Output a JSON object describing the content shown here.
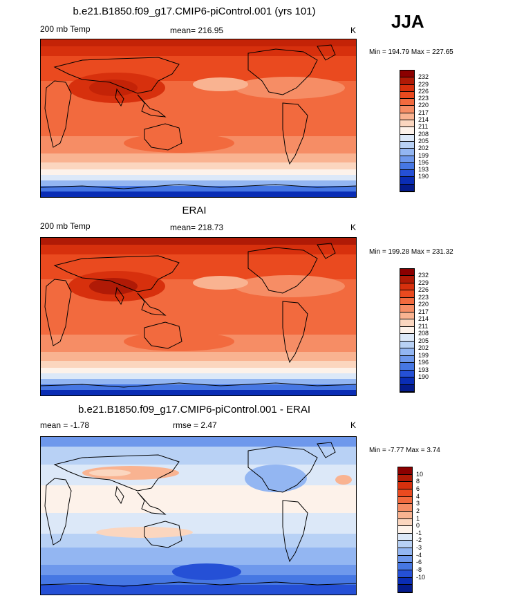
{
  "season": "JJA",
  "panels": [
    {
      "title": "b.e21.B1850.f09_g17.CMIP6-piControl.001 (yrs 101)",
      "left_label": "200 mb Temp",
      "center_label": "mean= 216.95",
      "units": "K",
      "minmax": "Min = 194.79 Max = 227.65"
    },
    {
      "title": "ERAI",
      "left_label": "200 mb Temp",
      "center_label": "mean= 218.73",
      "units": "K",
      "minmax": "Min = 199.28 Max = 231.32"
    },
    {
      "title": "b.e21.B1850.f09_g17.CMIP6-piControl.001 - ERAI",
      "left_label": "mean =  -1.78",
      "center_label": "rmse =   2.47",
      "units": "K",
      "minmax": "Min =  -7.77 Max =   3.74"
    }
  ],
  "colorbars": {
    "abs": {
      "labels": [
        "232",
        "229",
        "226",
        "223",
        "220",
        "217",
        "214",
        "211",
        "208",
        "205",
        "202",
        "199",
        "196",
        "193",
        "190"
      ],
      "colors": [
        "#8b0000",
        "#b01a06",
        "#d7300d",
        "#ea4a1f",
        "#f26a3e",
        "#f68d65",
        "#f9b391",
        "#fbd6bf",
        "#fdf2ea",
        "#dce8f8",
        "#b8d1f5",
        "#93b6f2",
        "#6e98ec",
        "#4677e3",
        "#2550d6",
        "#0a2db5",
        "#041b8c"
      ]
    },
    "diff": {
      "labels": [
        "10",
        "8",
        "6",
        "4",
        "3",
        "2",
        "1",
        "0",
        "-1",
        "-2",
        "-3",
        "-4",
        "-6",
        "-8",
        "-10"
      ],
      "colors": [
        "#8b0000",
        "#b01a06",
        "#d7300d",
        "#ea4a1f",
        "#f26a3e",
        "#f68d65",
        "#f9b391",
        "#fbd6bf",
        "#fdf2ea",
        "#dce8f8",
        "#b8d1f5",
        "#93b6f2",
        "#6e98ec",
        "#4677e3",
        "#2550d6",
        "#0a2db5",
        "#041b8c"
      ]
    }
  },
  "map_colors": {
    "p1": [
      "#c42307",
      "#d7300d",
      "#ea4a1f",
      "#f26a3e",
      "#f68d65",
      "#f9b391",
      "#fbd6bf",
      "#fdf2ea",
      "#dce8f8",
      "#93b6f2",
      "#4677e3",
      "#0a2db5"
    ],
    "p2": [
      "#b01a06",
      "#d7300d",
      "#ea4a1f",
      "#f26a3e",
      "#f68d65",
      "#f9b391",
      "#fbd6bf",
      "#fdf2ea",
      "#dce8f8",
      "#93b6f2",
      "#4677e3",
      "#0a2db5"
    ],
    "p3": [
      "#2550d6",
      "#4677e3",
      "#6e98ec",
      "#93b6f2",
      "#b8d1f5",
      "#dce8f8",
      "#fdf2ea",
      "#fbd6bf",
      "#f9b391",
      "#b8d1f5",
      "#6e98ec",
      "#2550d6"
    ]
  }
}
